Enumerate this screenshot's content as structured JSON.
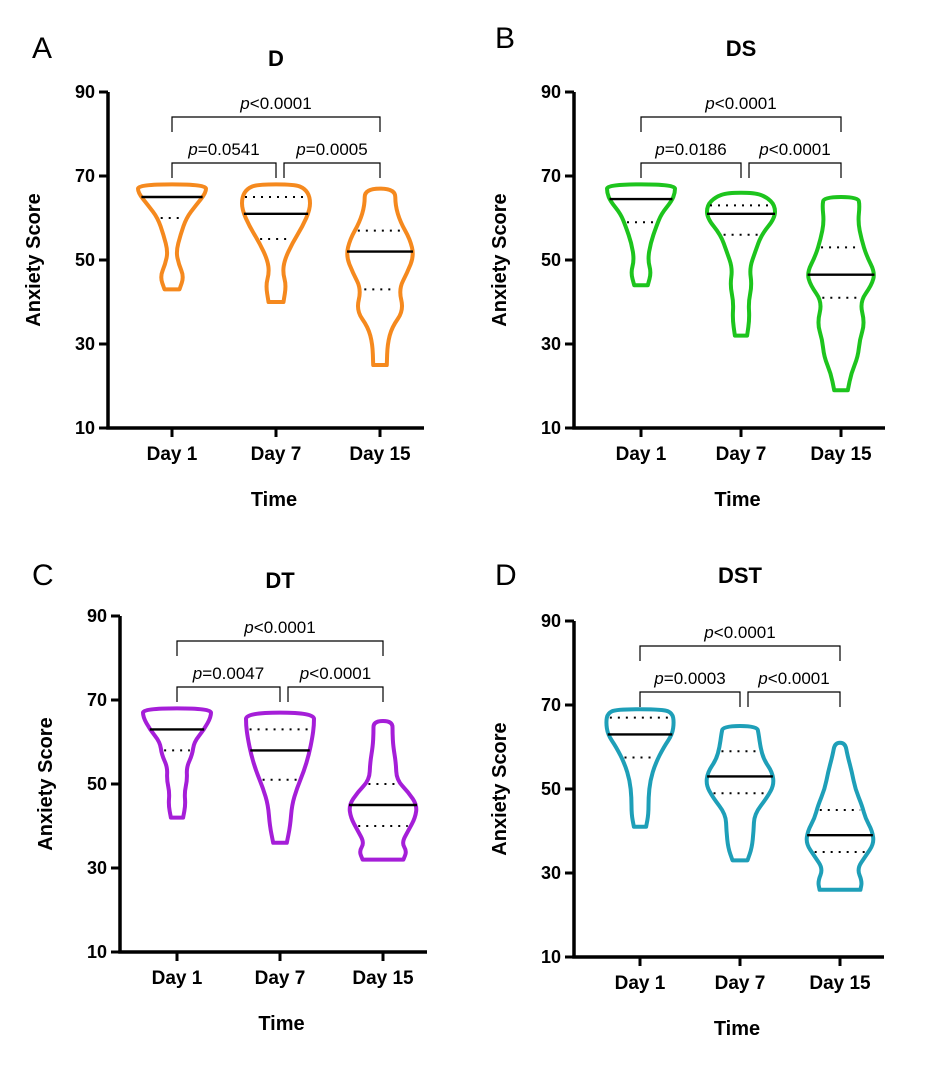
{
  "figure": {
    "panels": [
      {
        "letter": "A",
        "chart_data": {
          "type": "violin",
          "title": "D",
          "xlabel": "Time",
          "ylabel": "Anxiety Score",
          "ylim": [
            10,
            90
          ],
          "yticks": [
            "10",
            "30",
            "50",
            "70",
            "90"
          ],
          "categories": [
            "Day 1",
            "Day 7",
            "Day 15"
          ],
          "color": "#F5891E",
          "series": [
            {
              "category": "Day 1",
              "min": 43,
              "max": 68,
              "median": 65,
              "q1": 60,
              "q3": 65,
              "profile": [
                [
                  43,
                  0.22
                ],
                [
                  46,
                  0.35
                ],
                [
                  49,
                  0.2
                ],
                [
                  52,
                  0.12
                ],
                [
                  56,
                  0.25
                ],
                [
                  60,
                  0.42
                ],
                [
                  63,
                  0.7
                ],
                [
                  66,
                  1.0
                ],
                [
                  68,
                  1.0
                ]
              ]
            },
            {
              "category": "Day 7",
              "min": 40,
              "max": 68,
              "median": 61,
              "q1": 55,
              "q3": 65,
              "profile": [
                [
                  40,
                  0.22
                ],
                [
                  44,
                  0.3
                ],
                [
                  47,
                  0.2
                ],
                [
                  50,
                  0.25
                ],
                [
                  54,
                  0.48
                ],
                [
                  58,
                  0.78
                ],
                [
                  62,
                  1.0
                ],
                [
                  65,
                  1.0
                ],
                [
                  67,
                  0.85
                ],
                [
                  68,
                  0.55
                ]
              ]
            },
            {
              "category": "Day 15",
              "min": 25,
              "max": 67,
              "median": 52,
              "q1": 43,
              "q3": 57,
              "profile": [
                [
                  25,
                  0.2
                ],
                [
                  30,
                  0.22
                ],
                [
                  34,
                  0.35
                ],
                [
                  38,
                  0.7
                ],
                [
                  43,
                  0.55
                ],
                [
                  47,
                  0.8
                ],
                [
                  51,
                  1.0
                ],
                [
                  55,
                  0.88
                ],
                [
                  59,
                  0.6
                ],
                [
                  63,
                  0.45
                ],
                [
                  67,
                  0.45
                ]
              ]
            }
          ],
          "comparisons": [
            {
              "from": 0,
              "to": 1,
              "level": 1,
              "label_prefix": "p",
              "label_rest": "=0.0541"
            },
            {
              "from": 1,
              "to": 2,
              "level": 1,
              "label_prefix": "p",
              "label_rest": "=0.0005"
            },
            {
              "from": 0,
              "to": 2,
              "level": 2,
              "label_prefix": "p",
              "label_rest": "<0.0001"
            }
          ]
        }
      },
      {
        "letter": "B",
        "chart_data": {
          "type": "violin",
          "title": "DS",
          "xlabel": "Time",
          "ylabel": "Anxiety Score",
          "ylim": [
            10,
            90
          ],
          "yticks": [
            "10",
            "30",
            "50",
            "70",
            "90"
          ],
          "categories": [
            "Day 1",
            "Day 7",
            "Day 15"
          ],
          "color": "#1DC41D",
          "series": [
            {
              "category": "Day 1",
              "min": 44,
              "max": 68,
              "median": 64.5,
              "q1": 59,
              "q3": 64.5,
              "profile": [
                [
                  44,
                  0.2
                ],
                [
                  47,
                  0.3
                ],
                [
                  50,
                  0.2
                ],
                [
                  54,
                  0.28
                ],
                [
                  58,
                  0.45
                ],
                [
                  61,
                  0.6
                ],
                [
                  64,
                  0.9
                ],
                [
                  66,
                  1.0
                ],
                [
                  68,
                  1.0
                ]
              ]
            },
            {
              "category": "Day 7",
              "min": 32,
              "max": 66,
              "median": 61,
              "q1": 56,
              "q3": 63,
              "profile": [
                [
                  32,
                  0.18
                ],
                [
                  36,
                  0.25
                ],
                [
                  40,
                  0.22
                ],
                [
                  44,
                  0.32
                ],
                [
                  48,
                  0.25
                ],
                [
                  52,
                  0.42
                ],
                [
                  56,
                  0.6
                ],
                [
                  60,
                  1.0
                ],
                [
                  63,
                  1.0
                ],
                [
                  65,
                  0.75
                ],
                [
                  66,
                  0.4
                ]
              ]
            },
            {
              "category": "Day 15",
              "min": 19,
              "max": 65,
              "median": 46.5,
              "q1": 41,
              "q3": 53,
              "profile": [
                [
                  19,
                  0.2
                ],
                [
                  23,
                  0.3
                ],
                [
                  27,
                  0.5
                ],
                [
                  31,
                  0.55
                ],
                [
                  35,
                  0.7
                ],
                [
                  40,
                  0.55
                ],
                [
                  44,
                  0.9
                ],
                [
                  47,
                  1.0
                ],
                [
                  51,
                  0.75
                ],
                [
                  55,
                  0.6
                ],
                [
                  59,
                  0.5
                ],
                [
                  63,
                  0.55
                ],
                [
                  65,
                  0.5
                ]
              ]
            }
          ],
          "comparisons": [
            {
              "from": 0,
              "to": 1,
              "level": 1,
              "label_prefix": "p",
              "label_rest": "=0.0186"
            },
            {
              "from": 1,
              "to": 2,
              "level": 1,
              "label_prefix": "p",
              "label_rest": "<0.0001"
            },
            {
              "from": 0,
              "to": 2,
              "level": 2,
              "label_prefix": "p",
              "label_rest": "<0.0001"
            }
          ]
        }
      },
      {
        "letter": "C",
        "chart_data": {
          "type": "violin",
          "title": "DT",
          "xlabel": "Time",
          "ylabel": "Anxiety Score",
          "ylim": [
            10,
            90
          ],
          "yticks": [
            "10",
            "30",
            "50",
            "70",
            "90"
          ],
          "categories": [
            "Day 1",
            "Day 7",
            "Day 15"
          ],
          "color": "#A51ED8",
          "series": [
            {
              "category": "Day 1",
              "min": 42,
              "max": 68,
              "median": 63,
              "q1": 58,
              "q3": 63,
              "profile": [
                [
                  42,
                  0.18
                ],
                [
                  45,
                  0.25
                ],
                [
                  48,
                  0.22
                ],
                [
                  51,
                  0.3
                ],
                [
                  54,
                  0.28
                ],
                [
                  57,
                  0.45
                ],
                [
                  60,
                  0.5
                ],
                [
                  63,
                  0.8
                ],
                [
                  66,
                  1.0
                ],
                [
                  68,
                  1.0
                ]
              ]
            },
            {
              "category": "Day 7",
              "min": 36,
              "max": 67,
              "median": 58,
              "q1": 51,
              "q3": 63,
              "profile": [
                [
                  36,
                  0.2
                ],
                [
                  40,
                  0.3
                ],
                [
                  45,
                  0.35
                ],
                [
                  49,
                  0.5
                ],
                [
                  53,
                  0.7
                ],
                [
                  57,
                  0.85
                ],
                [
                  61,
                  0.95
                ],
                [
                  64,
                  1.0
                ],
                [
                  67,
                  1.0
                ]
              ]
            },
            {
              "category": "Day 15",
              "min": 32,
              "max": 65,
              "median": 45,
              "q1": 40,
              "q3": 50,
              "profile": [
                [
                  32,
                  0.6
                ],
                [
                  34,
                  0.7
                ],
                [
                  36,
                  0.55
                ],
                [
                  39,
                  0.75
                ],
                [
                  42,
                  0.95
                ],
                [
                  45,
                  1.0
                ],
                [
                  48,
                  0.75
                ],
                [
                  51,
                  0.4
                ],
                [
                  55,
                  0.38
                ],
                [
                  59,
                  0.3
                ],
                [
                  62,
                  0.28
                ],
                [
                  65,
                  0.28
                ]
              ]
            }
          ],
          "comparisons": [
            {
              "from": 0,
              "to": 1,
              "level": 1,
              "label_prefix": "p",
              "label_rest": "=0.0047"
            },
            {
              "from": 1,
              "to": 2,
              "level": 1,
              "label_prefix": "p",
              "label_rest": "<0.0001"
            },
            {
              "from": 0,
              "to": 2,
              "level": 2,
              "label_prefix": "p",
              "label_rest": "<0.0001"
            }
          ]
        }
      },
      {
        "letter": "D",
        "chart_data": {
          "type": "violin",
          "title": "DST",
          "xlabel": "Time",
          "ylabel": "Anxiety Score",
          "ylim": [
            10,
            90
          ],
          "yticks": [
            "10",
            "30",
            "50",
            "70",
            "90"
          ],
          "categories": [
            "Day 1",
            "Day 7",
            "Day 15"
          ],
          "color": "#1E9FB8",
          "series": [
            {
              "category": "Day 1",
              "min": 41,
              "max": 69,
              "median": 63,
              "q1": 57.5,
              "q3": 67,
              "profile": [
                [
                  41,
                  0.18
                ],
                [
                  44,
                  0.25
                ],
                [
                  48,
                  0.25
                ],
                [
                  52,
                  0.3
                ],
                [
                  56,
                  0.45
                ],
                [
                  60,
                  0.7
                ],
                [
                  63,
                  0.95
                ],
                [
                  66,
                  1.0
                ],
                [
                  68,
                  0.95
                ],
                [
                  69,
                  0.7
                ]
              ]
            },
            {
              "category": "Day 7",
              "min": 33,
              "max": 65,
              "median": 53,
              "q1": 49,
              "q3": 59,
              "profile": [
                [
                  33,
                  0.22
                ],
                [
                  36,
                  0.35
                ],
                [
                  40,
                  0.4
                ],
                [
                  44,
                  0.42
                ],
                [
                  48,
                  0.8
                ],
                [
                  51,
                  1.0
                ],
                [
                  54,
                  0.95
                ],
                [
                  57,
                  0.7
                ],
                [
                  60,
                  0.6
                ],
                [
                  63,
                  0.55
                ],
                [
                  65,
                  0.5
                ]
              ]
            },
            {
              "category": "Day 15",
              "min": 26,
              "max": 61,
              "median": 39,
              "q1": 35,
              "q3": 45,
              "profile": [
                [
                  26,
                  0.6
                ],
                [
                  28,
                  0.65
                ],
                [
                  31,
                  0.5
                ],
                [
                  34,
                  0.75
                ],
                [
                  37,
                  1.0
                ],
                [
                  40,
                  0.95
                ],
                [
                  43,
                  0.75
                ],
                [
                  46,
                  0.65
                ],
                [
                  50,
                  0.45
                ],
                [
                  54,
                  0.35
                ],
                [
                  58,
                  0.22
                ],
                [
                  61,
                  0.15
                ]
              ]
            }
          ],
          "comparisons": [
            {
              "from": 0,
              "to": 1,
              "level": 1,
              "label_prefix": "p",
              "label_rest": "=0.0003"
            },
            {
              "from": 1,
              "to": 2,
              "level": 1,
              "label_prefix": "p",
              "label_rest": "<0.0001"
            },
            {
              "from": 0,
              "to": 2,
              "level": 2,
              "label_prefix": "p",
              "label_rest": "<0.0001"
            }
          ]
        }
      }
    ]
  }
}
